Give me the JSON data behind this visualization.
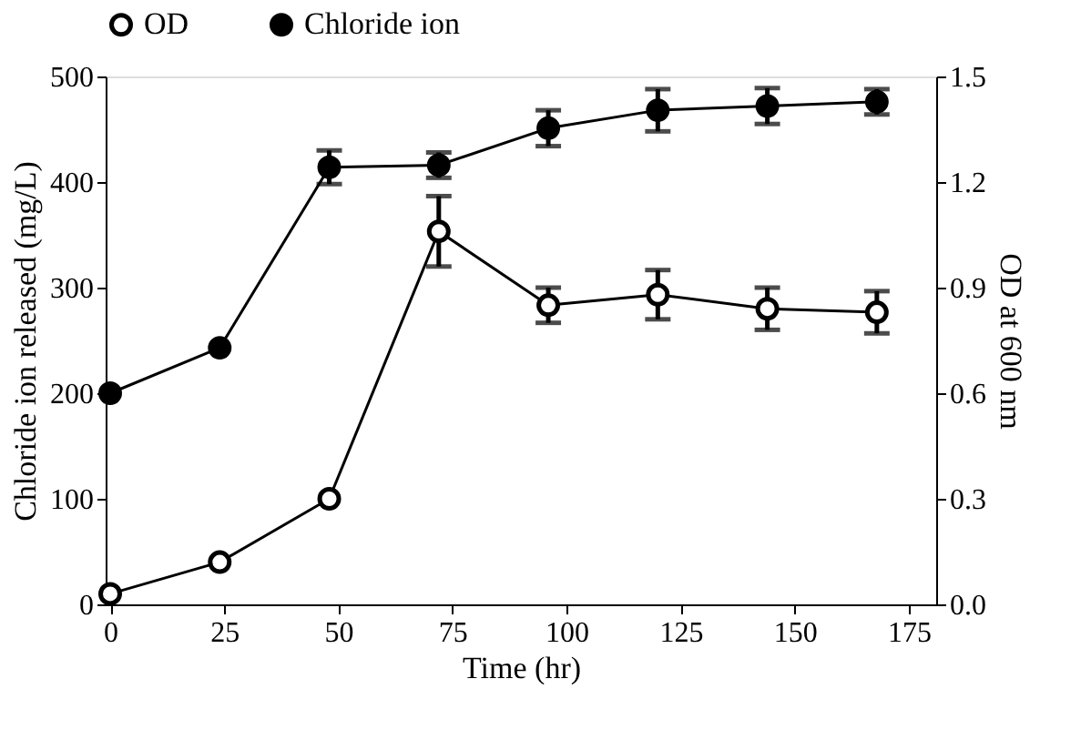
{
  "chart_data": {
    "type": "line",
    "xlabel": "Time  (hr)",
    "ylabel": "Chloride ion released (mg/L)",
    "y2label": "OD at 600 nm",
    "x": [
      0,
      24,
      48,
      72,
      96,
      120,
      144,
      168
    ],
    "series": [
      {
        "name": "OD",
        "color": "#000000",
        "axis": "y2",
        "values": [
          0.03,
          0.12,
          0.3,
          1.06,
          0.85,
          0.88,
          0.84,
          0.83
        ],
        "errors": [
          null,
          null,
          null,
          0.1,
          0.05,
          0.07,
          0.06,
          0.06
        ]
      },
      {
        "name": "Chloride ion",
        "color": "#000000",
        "axis": "y",
        "values": [
          200,
          243,
          414,
          416,
          451,
          468,
          472,
          476
        ],
        "errors": [
          null,
          null,
          16,
          12,
          17,
          20,
          17,
          12
        ]
      }
    ],
    "xlim": [
      -1,
      181
    ],
    "xticks": [
      0,
      25,
      50,
      75,
      100,
      125,
      150,
      175
    ],
    "ylim": [
      0,
      500
    ],
    "yticks": [
      0,
      100,
      200,
      300,
      400,
      500
    ],
    "y2lim": [
      0,
      1.5
    ],
    "y2ticks": [
      {
        "value": 0,
        "label": "0.0"
      },
      0.3,
      0.6,
      0.9,
      1.2,
      1.5
    ],
    "marker": "circle",
    "line_style": "solid",
    "legend": "top",
    "grid": false
  }
}
